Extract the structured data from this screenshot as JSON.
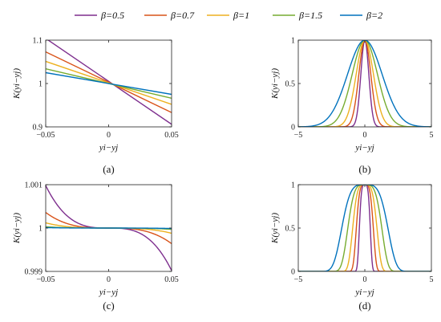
{
  "legend": {
    "entries": [
      {
        "label": "β=0.5",
        "color": "#7E2F8E"
      },
      {
        "label": "β=0.7",
        "color": "#D95319"
      },
      {
        "label": "β=1",
        "color": "#EDB120"
      },
      {
        "label": "β=1.5",
        "color": "#77AC30"
      },
      {
        "label": "β=2",
        "color": "#0072BD"
      }
    ]
  },
  "chart_data": [
    {
      "type": "line",
      "panel": "a",
      "caption": "(a)",
      "xlabel": "yi−yj",
      "ylabel": "K(yi−yj)",
      "xlim": [
        -0.05,
        0.05
      ],
      "ylim": [
        0.9,
        1.1
      ],
      "xticks": [
        -0.05,
        0,
        0.05
      ],
      "xtick_labels": [
        "−0.05",
        "0",
        "0.05"
      ],
      "yticks": [
        0.9,
        1,
        1.1
      ],
      "ytick_labels": [
        "0.9",
        "1",
        "1.1"
      ],
      "grid": false,
      "x": [
        -0.05,
        0.05
      ],
      "series": [
        {
          "name": "β=0.5",
          "values": [
            1.104,
            0.906
          ]
        },
        {
          "name": "β=0.7",
          "values": [
            1.073,
            0.933
          ]
        },
        {
          "name": "β=1",
          "values": [
            1.051,
            0.952
          ]
        },
        {
          "name": "β=1.5",
          "values": [
            1.034,
            0.966
          ]
        },
        {
          "name": "β=2",
          "values": [
            1.025,
            0.975
          ]
        }
      ]
    },
    {
      "type": "line",
      "panel": "b",
      "caption": "(b)",
      "xlabel": "yi−yj",
      "ylabel": "K(yi−yj)",
      "xlim": [
        -5,
        5
      ],
      "ylim": [
        0,
        1
      ],
      "xticks": [
        -5,
        0,
        5
      ],
      "xtick_labels": [
        "−5",
        "0",
        "5"
      ],
      "yticks": [
        0,
        0.5,
        1
      ],
      "ytick_labels": [
        "0",
        "0.5",
        "1"
      ],
      "grid": false,
      "series": [
        {
          "name": "β=0.5",
          "kernel": "gaussian",
          "sigma": 0.3
        },
        {
          "name": "β=0.7",
          "kernel": "gaussian",
          "sigma": 0.45
        },
        {
          "name": "β=1",
          "kernel": "gaussian",
          "sigma": 0.65
        },
        {
          "name": "β=1.5",
          "kernel": "gaussian",
          "sigma": 0.95
        },
        {
          "name": "β=2",
          "kernel": "gaussian",
          "sigma": 1.3
        }
      ]
    },
    {
      "type": "line",
      "panel": "c",
      "caption": "(c)",
      "xlabel": "yi−yj",
      "ylabel": "K(yi−yj)",
      "xlim": [
        -0.05,
        0.05
      ],
      "ylim": [
        0.999,
        1.001
      ],
      "xticks": [
        -0.05,
        0,
        0.05
      ],
      "xtick_labels": [
        "−0.05",
        "0",
        "0.05"
      ],
      "yticks": [
        0.999,
        1,
        1.001
      ],
      "ytick_labels": [
        "0.999",
        "1",
        "1.001"
      ],
      "grid": false,
      "series": [
        {
          "name": "β=0.5",
          "kernel": "cubic",
          "amplitude": 0.00098
        },
        {
          "name": "β=0.7",
          "kernel": "cubic",
          "amplitude": 0.00036
        },
        {
          "name": "β=1",
          "kernel": "cubic",
          "amplitude": 0.00012
        },
        {
          "name": "β=1.5",
          "kernel": "cubic",
          "amplitude": 3e-05
        },
        {
          "name": "β=2",
          "kernel": "cubic",
          "amplitude": 1e-05
        }
      ]
    },
    {
      "type": "line",
      "panel": "d",
      "caption": "(d)",
      "xlabel": "yi−yj",
      "ylabel": "K(yi−yj)",
      "xlim": [
        -5,
        5
      ],
      "ylim": [
        0,
        1
      ],
      "xticks": [
        -5,
        0,
        5
      ],
      "xtick_labels": [
        "−5",
        "0",
        "5"
      ],
      "yticks": [
        0,
        0.5,
        1
      ],
      "ytick_labels": [
        "0",
        "0.5",
        "1"
      ],
      "grid": false,
      "series": [
        {
          "name": "β=0.5",
          "kernel": "super-gaussian",
          "width": 0.45
        },
        {
          "name": "β=0.7",
          "kernel": "super-gaussian",
          "width": 0.7
        },
        {
          "name": "β=1",
          "kernel": "super-gaussian",
          "width": 1.0
        },
        {
          "name": "β=1.5",
          "kernel": "super-gaussian",
          "width": 1.4
        },
        {
          "name": "β=2",
          "kernel": "super-gaussian",
          "width": 1.9
        }
      ]
    }
  ]
}
